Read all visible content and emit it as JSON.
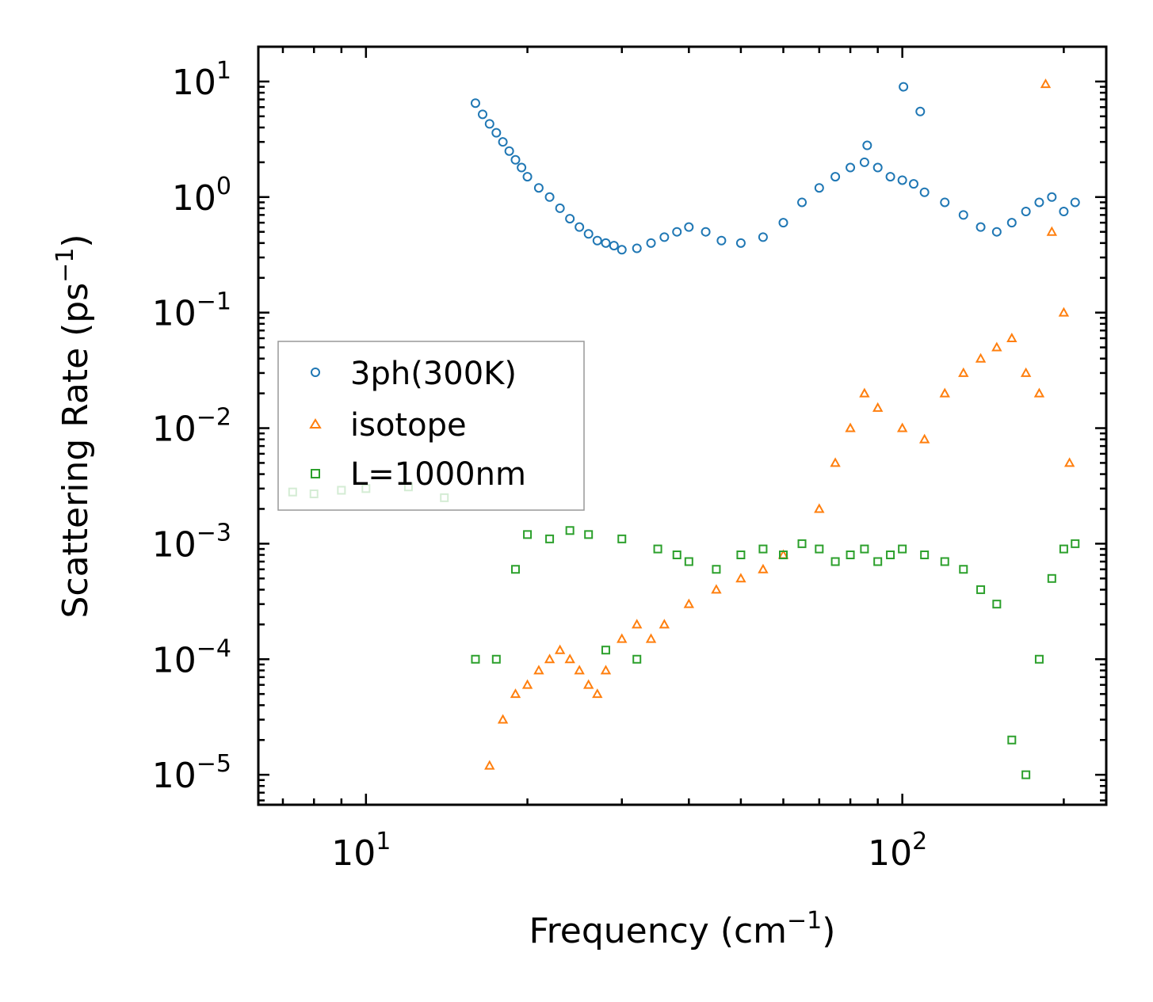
{
  "chart_data": {
    "type": "scatter",
    "title": "",
    "xlabel": {
      "text": "Frequency (cm",
      "sup": "−1",
      "suffix": ")"
    },
    "ylabel": {
      "text": "Scattering Rate (ps",
      "sup": "−1",
      "suffix": ")"
    },
    "xscale": "log",
    "yscale": "log",
    "xlim": [
      6.3,
      240
    ],
    "ylim": [
      5.5e-06,
      20
    ],
    "xticks": [
      {
        "value": 10,
        "base": "10",
        "exp": "1"
      },
      {
        "value": 100,
        "base": "10",
        "exp": "2"
      }
    ],
    "yticks": [
      {
        "value": 10,
        "base": "10",
        "exp": "1"
      },
      {
        "value": 1,
        "base": "10",
        "exp": "0"
      },
      {
        "value": 0.1,
        "base": "10",
        "exp": "−1"
      },
      {
        "value": 0.01,
        "base": "10",
        "exp": "−2"
      },
      {
        "value": 0.001,
        "base": "10",
        "exp": "−3"
      },
      {
        "value": 0.0001,
        "base": "10",
        "exp": "−4"
      },
      {
        "value": 1e-05,
        "base": "10",
        "exp": "−5"
      }
    ],
    "legend_position": "center-left",
    "series": [
      {
        "name": "3ph(300K)",
        "marker": "circle",
        "color": "#1f77b4",
        "x": [
          16.0,
          16.5,
          17.0,
          17.5,
          18.0,
          18.5,
          19.0,
          19.5,
          20.0,
          21.0,
          22.0,
          23.0,
          24.0,
          25.0,
          26.0,
          27.0,
          28.0,
          29.0,
          30.0,
          32.0,
          34.0,
          36.0,
          38.0,
          40.0,
          43.0,
          46.0,
          50.0,
          55.0,
          60.0,
          65.0,
          70.0,
          75.0,
          80.0,
          85.0,
          90.0,
          95.0,
          100.0,
          105.0,
          110.0,
          120.0,
          130.0,
          140.0,
          150.0,
          160.0,
          170.0,
          180.0,
          190.0,
          200.0,
          210.0,
          100.5,
          108.0,
          86.0
        ],
        "y": [
          6.5,
          5.2,
          4.3,
          3.6,
          3.0,
          2.5,
          2.1,
          1.8,
          1.5,
          1.2,
          1.0,
          0.8,
          0.65,
          0.55,
          0.48,
          0.42,
          0.4,
          0.38,
          0.35,
          0.36,
          0.4,
          0.45,
          0.5,
          0.55,
          0.5,
          0.42,
          0.4,
          0.45,
          0.6,
          0.9,
          1.2,
          1.5,
          1.8,
          2.0,
          1.8,
          1.5,
          1.4,
          1.3,
          1.1,
          0.9,
          0.7,
          0.55,
          0.5,
          0.6,
          0.75,
          0.9,
          1.0,
          0.75,
          0.9,
          9.0,
          5.5,
          2.8
        ]
      },
      {
        "name": "isotope",
        "marker": "triangle",
        "color": "#ff7f0e",
        "x": [
          17.0,
          18.0,
          19.0,
          20.0,
          21.0,
          22.0,
          23.0,
          24.0,
          25.0,
          26.0,
          27.0,
          28.0,
          30.0,
          32.0,
          34.0,
          36.0,
          40.0,
          45.0,
          50.0,
          55.0,
          60.0,
          70.0,
          75.0,
          80.0,
          85.0,
          90.0,
          100.0,
          110.0,
          120.0,
          130.0,
          140.0,
          150.0,
          160.0,
          170.0,
          180.0,
          185.0,
          190.0,
          200.0,
          205.0
        ],
        "y": [
          1.2e-05,
          3e-05,
          5e-05,
          6e-05,
          8e-05,
          0.0001,
          0.00012,
          0.0001,
          8e-05,
          6e-05,
          5e-05,
          8e-05,
          0.00015,
          0.0002,
          0.00015,
          0.0002,
          0.0003,
          0.0004,
          0.0005,
          0.0006,
          0.0008,
          0.002,
          0.005,
          0.01,
          0.02,
          0.015,
          0.01,
          0.008,
          0.02,
          0.03,
          0.04,
          0.05,
          0.06,
          0.03,
          0.02,
          9.5,
          0.5,
          0.1,
          0.005
        ]
      },
      {
        "name": "L=1000nm",
        "marker": "square",
        "color": "#2ca02c",
        "x": [
          7.3,
          8.0,
          9.0,
          10.0,
          12.0,
          14.0,
          16.0,
          17.5,
          19.0,
          20.0,
          22.0,
          24.0,
          26.0,
          28.0,
          30.0,
          32.0,
          35.0,
          38.0,
          40.0,
          45.0,
          50.0,
          55.0,
          60.0,
          65.0,
          70.0,
          75.0,
          80.0,
          85.0,
          90.0,
          95.0,
          100.0,
          110.0,
          120.0,
          130.0,
          140.0,
          150.0,
          160.0,
          170.0,
          180.0,
          190.0,
          200.0,
          210.0
        ],
        "y": [
          0.0028,
          0.0027,
          0.0029,
          0.003,
          0.0031,
          0.0025,
          0.0001,
          0.0001,
          0.0006,
          0.0012,
          0.0011,
          0.0013,
          0.0012,
          0.00012,
          0.0011,
          0.0001,
          0.0009,
          0.0008,
          0.0007,
          0.0006,
          0.0008,
          0.0009,
          0.0008,
          0.001,
          0.0009,
          0.0007,
          0.0008,
          0.0009,
          0.0007,
          0.0008,
          0.0009,
          0.0008,
          0.0007,
          0.0006,
          0.0004,
          0.0003,
          2e-05,
          1e-05,
          0.0001,
          0.0005,
          0.0009,
          0.001
        ]
      }
    ]
  }
}
